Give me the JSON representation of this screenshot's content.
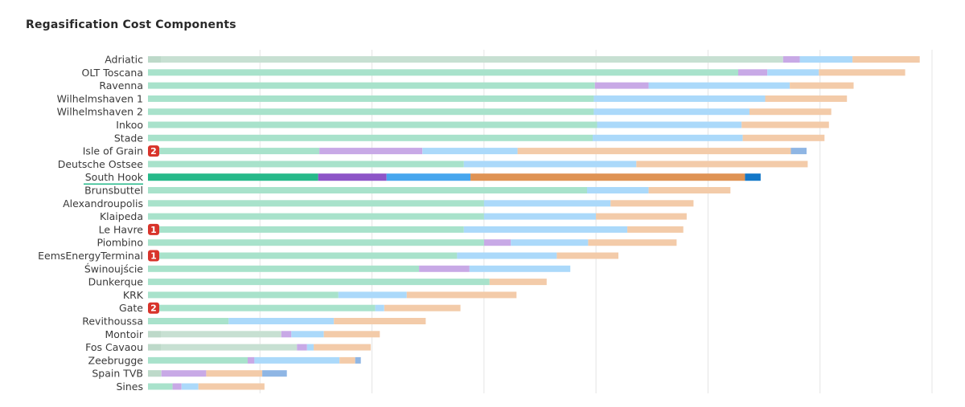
{
  "chart_data": {
    "type": "bar",
    "orientation": "horizontal",
    "stacked": true,
    "title": "Regasification Cost Components",
    "xlim": [
      0,
      7
    ],
    "grid": true,
    "highlighted_category": "South Hook",
    "segment_colors": [
      "#a8e2cb",
      "#c8a9e6",
      "#abd9fa",
      "#f3cba9",
      "#8fb6e4"
    ],
    "highlight_colors": [
      "#26b98a",
      "#8d55c7",
      "#47a6ee",
      "#df9354",
      "#1478c8"
    ],
    "desaturated_colors": [
      "#c7e0d2",
      "#c8a9e6",
      "#abd9fa",
      "#f3cba9",
      "#8fb6e4"
    ],
    "categories": [
      "Adriatic",
      "OLT Toscana",
      "Ravenna",
      "Wilhelmshaven 1",
      "Wilhelmshaven 2",
      "Inkoo",
      "Stade",
      "Isle of Grain",
      "Deutsche Ostsee",
      "South Hook",
      "Brunsbuttel",
      "Alexandroupolis",
      "Klaipeda",
      "Le Havre",
      "Piombino",
      "EemsEnergyTerminal",
      "Świnoujście",
      "Dunkerque",
      "KRK",
      "Gate",
      "Revithoussa",
      "Montoir",
      "Fos Cavaou",
      "Zeebrugge",
      "Spain TVB",
      "Sines"
    ],
    "badges": [
      {
        "category": "Isle of Grain",
        "text": "2"
      },
      {
        "category": "Le Havre",
        "text": "1"
      },
      {
        "category": "EemsEnergyTerminal",
        "text": "1"
      },
      {
        "category": "Gate",
        "text": "2"
      }
    ],
    "desaturated_categories": [
      "Adriatic",
      "Montoir",
      "Fos Cavaou",
      "Spain TVB"
    ],
    "series": [
      {
        "values": [
          5.67,
          5.27,
          3.99,
          3.98,
          3.98,
          4.01,
          3.97,
          1.53,
          2.82,
          1.52,
          3.92,
          3.0,
          3.0,
          2.82,
          3.0,
          2.76,
          2.42,
          3.05,
          1.7,
          2.03,
          0.72,
          1.19,
          1.33,
          0.89,
          0.12,
          0.22
        ]
      },
      {
        "values": [
          0.15,
          0.26,
          0.48,
          0.0,
          0.0,
          0.0,
          0.0,
          0.92,
          0.0,
          0.61,
          0.0,
          0.0,
          0.0,
          0.0,
          0.24,
          0.0,
          0.45,
          0.0,
          0.0,
          0.0,
          0.0,
          0.09,
          0.09,
          0.06,
          0.4,
          0.08
        ]
      },
      {
        "values": [
          0.47,
          0.46,
          1.26,
          1.53,
          1.39,
          1.29,
          1.34,
          0.85,
          1.54,
          0.75,
          0.55,
          1.13,
          1.0,
          1.46,
          0.69,
          0.89,
          0.9,
          0.0,
          0.61,
          0.08,
          0.94,
          0.29,
          0.06,
          0.76,
          0.0,
          0.15
        ]
      },
      {
        "values": [
          0.6,
          0.77,
          0.57,
          0.73,
          0.73,
          0.78,
          0.73,
          2.44,
          1.53,
          2.45,
          0.73,
          0.74,
          0.81,
          0.5,
          0.79,
          0.55,
          0.0,
          0.51,
          0.98,
          0.68,
          0.82,
          0.5,
          0.51,
          0.14,
          0.5,
          0.59
        ]
      },
      {
        "values": [
          0.0,
          0.0,
          0.0,
          0.0,
          0.0,
          0.0,
          0.0,
          0.14,
          0.0,
          0.14,
          0.0,
          0.0,
          0.0,
          0.0,
          0.0,
          0.0,
          0.0,
          0.0,
          0.0,
          0.0,
          0.0,
          0.0,
          0.0,
          0.05,
          0.22,
          0.0
        ]
      }
    ]
  }
}
